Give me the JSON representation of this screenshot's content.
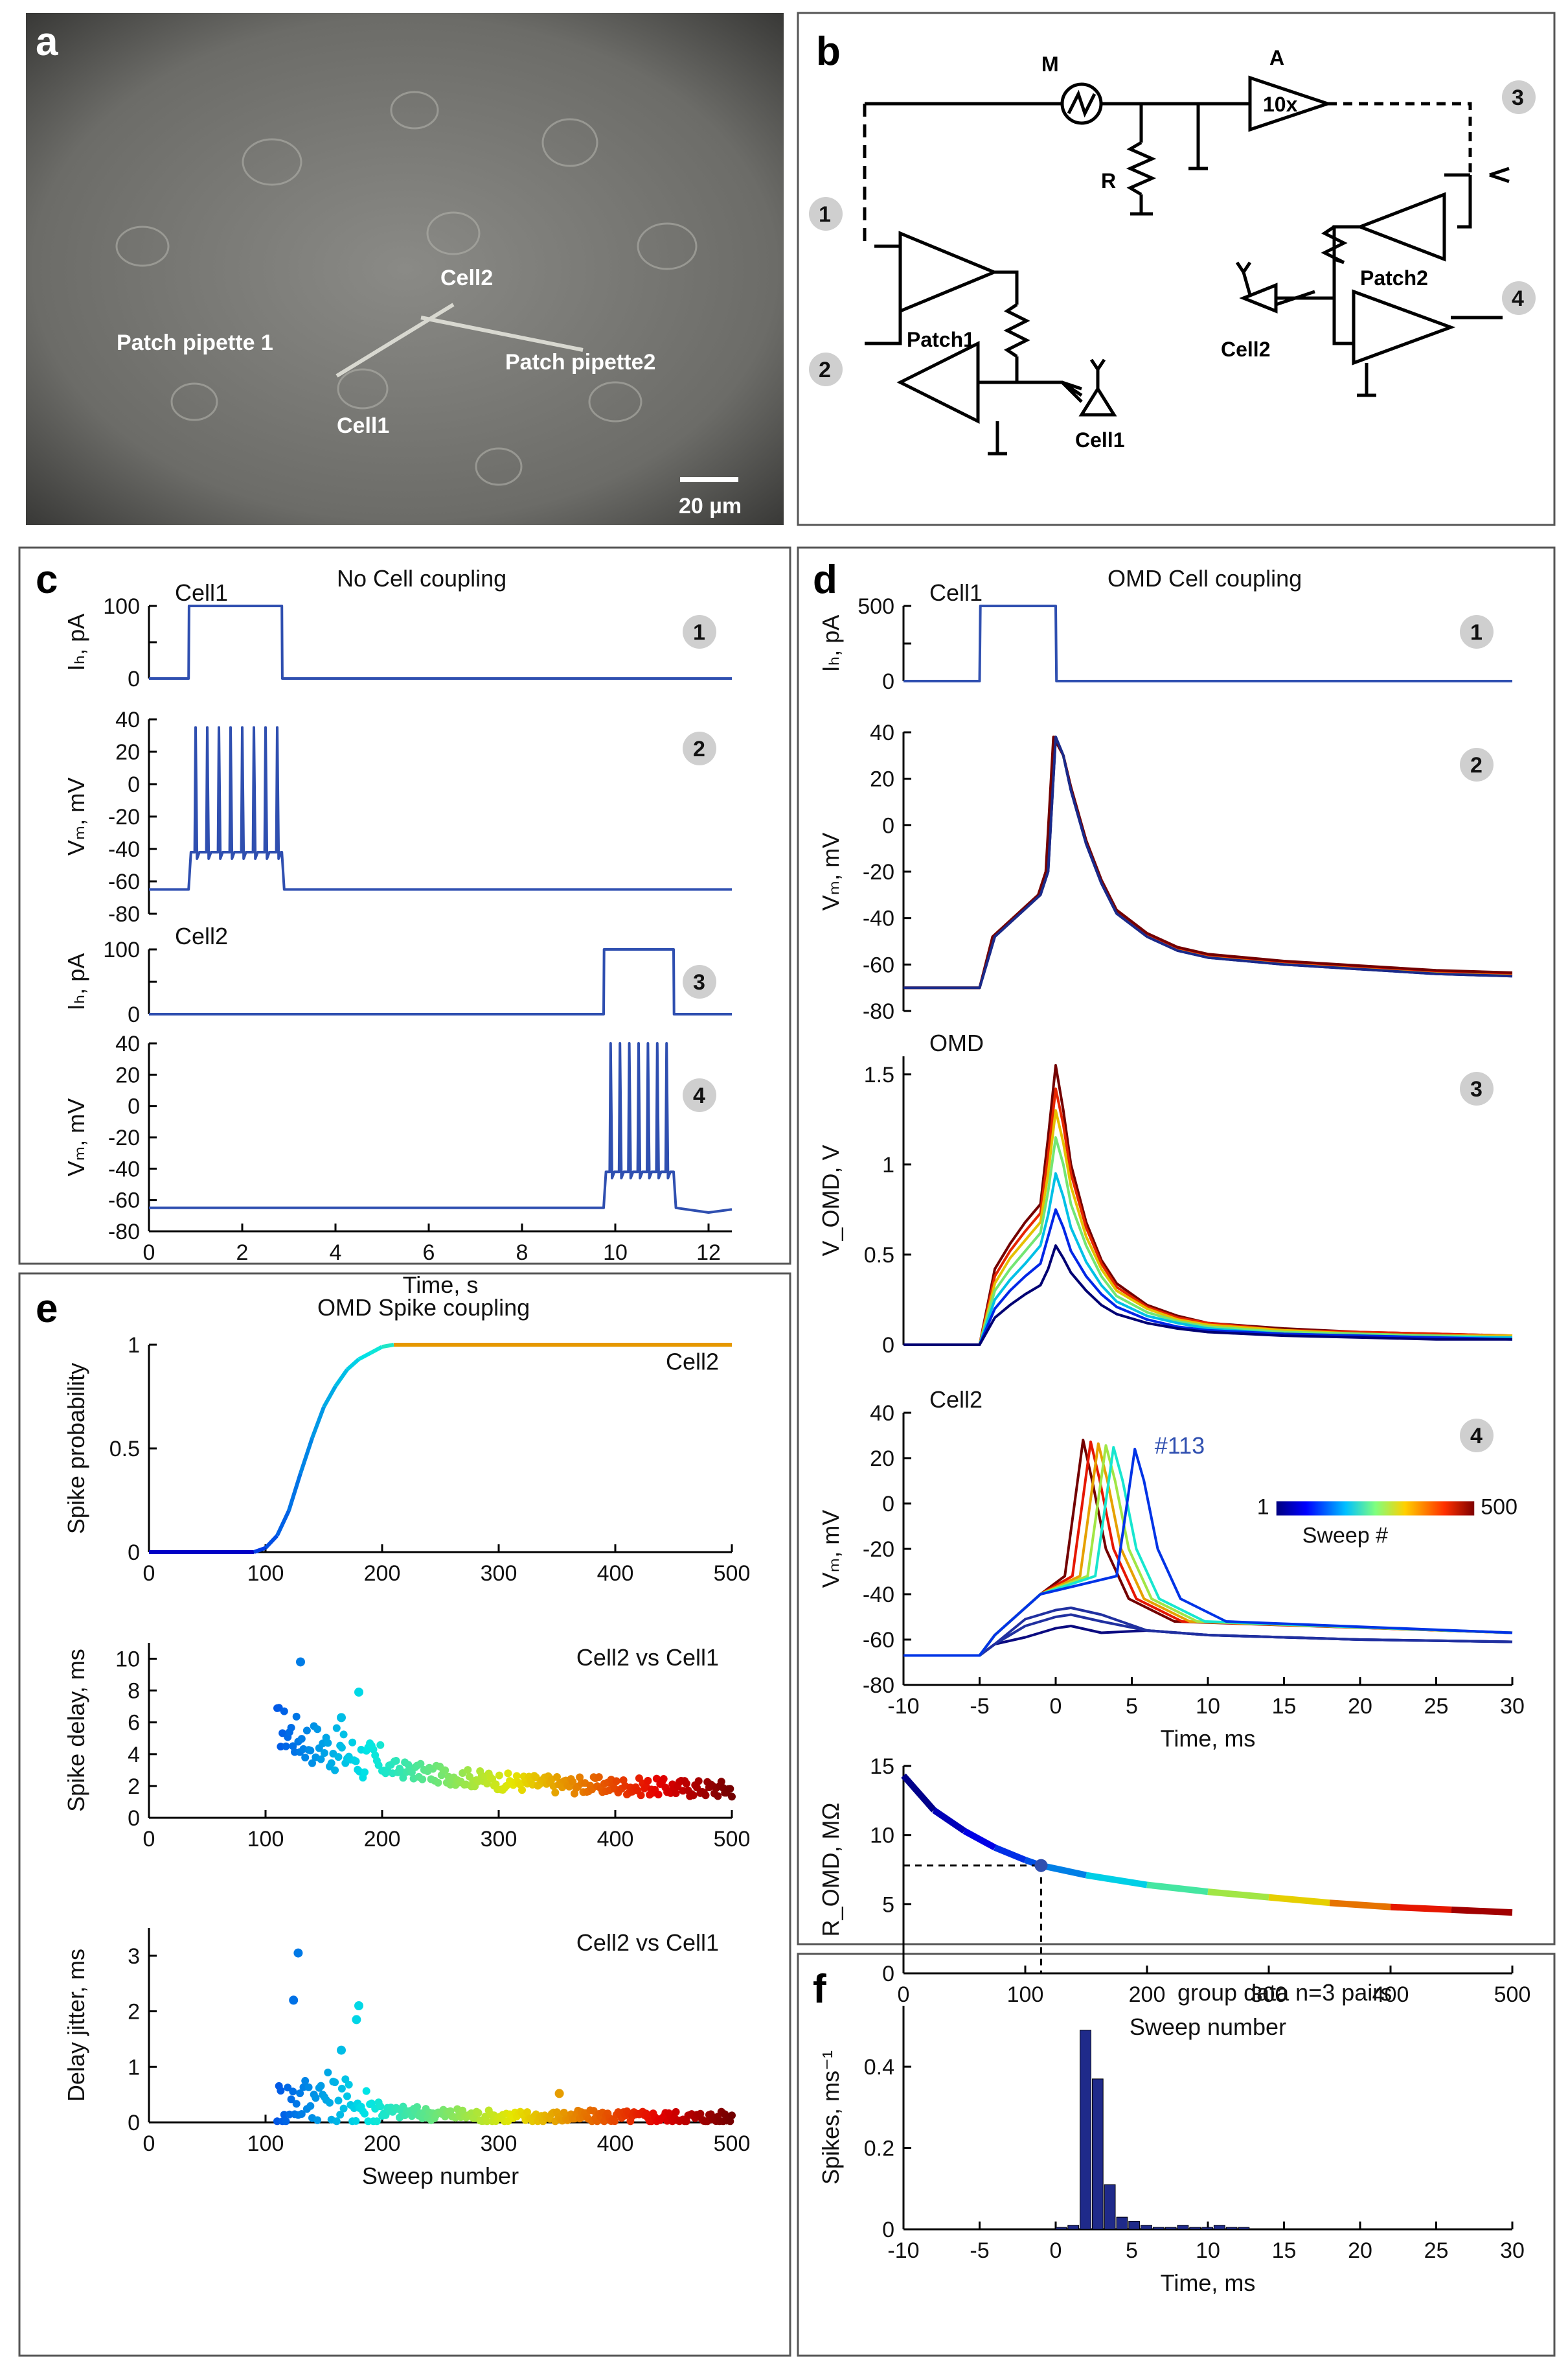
{
  "panels": {
    "a": {
      "label": "a",
      "annotations": [
        "Cell2",
        "Patch pipette 1",
        "Patch pipette2",
        "Cell1"
      ],
      "scale_bar": "20 µm"
    },
    "b": {
      "label": "b",
      "component_labels": [
        "M",
        "A",
        "10x",
        "R",
        "Patch1",
        "Patch2",
        "Cell1",
        "Cell2"
      ],
      "ports": [
        "1",
        "2",
        "3",
        "4"
      ]
    },
    "c": {
      "label": "c",
      "title": "No Cell coupling"
    },
    "d": {
      "label": "d",
      "title": "OMD Cell coupling"
    },
    "e": {
      "label": "e",
      "title": "OMD Spike coupling"
    },
    "f": {
      "label": "f"
    }
  },
  "chart_data": [
    {
      "id": "c1",
      "type": "line",
      "panel": "c",
      "title": "Cell1",
      "badge": "1",
      "ylabel": "Iₕ, pA",
      "xlim": [
        0,
        12.5
      ],
      "ylim": [
        0,
        100
      ],
      "yticks": [
        0,
        50,
        100
      ],
      "yticklabels": [
        "0",
        "",
        "100"
      ],
      "x": [
        0,
        0.85,
        0.86,
        2.85,
        2.86,
        12.5
      ],
      "y": [
        0,
        0,
        100,
        100,
        0,
        0
      ]
    },
    {
      "id": "c2",
      "type": "line",
      "panel": "c",
      "badge": "2",
      "ylabel": "Vₘ, mV",
      "xlim": [
        0,
        12.5
      ],
      "ylim": [
        -80,
        40
      ],
      "yticks": [
        -80,
        -60,
        -40,
        -20,
        0,
        20,
        40
      ],
      "x": [
        0,
        0.85,
        0.9,
        2.85,
        2.9,
        12.5
      ],
      "y": [
        -65,
        -65,
        -42,
        -42,
        -65,
        -65
      ],
      "spike_times": [
        1.0,
        1.25,
        1.5,
        1.75,
        2.0,
        2.25,
        2.5,
        2.75
      ],
      "spike_peak": 35
    },
    {
      "id": "c3",
      "type": "line",
      "panel": "c",
      "title": "Cell2",
      "badge": "3",
      "ylabel": "Iₕ, pA",
      "xlim": [
        0,
        12.5
      ],
      "ylim": [
        0,
        100
      ],
      "yticks": [
        0,
        50,
        100
      ],
      "yticklabels": [
        "0",
        "",
        "100"
      ],
      "x": [
        0,
        9.75,
        9.76,
        11.25,
        11.26,
        12.5
      ],
      "y": [
        0,
        0,
        100,
        100,
        0,
        0
      ]
    },
    {
      "id": "c4",
      "type": "line",
      "panel": "c",
      "badge": "4",
      "ylabel": "Vₘ, mV",
      "xlabel": "Time, s",
      "xlim": [
        0,
        12.5
      ],
      "ylim": [
        -80,
        40
      ],
      "yticks": [
        -80,
        -60,
        -40,
        -20,
        0,
        20,
        40
      ],
      "xticks": [
        0,
        2,
        4,
        6,
        8,
        10,
        12
      ],
      "x": [
        0,
        9.75,
        9.8,
        11.25,
        11.3,
        12.0,
        12.5
      ],
      "y": [
        -65,
        -65,
        -42,
        -42,
        -65,
        -68,
        -66
      ],
      "spike_times": [
        9.9,
        10.1,
        10.3,
        10.5,
        10.7,
        10.9,
        11.1
      ],
      "spike_peak": 40
    },
    {
      "id": "d1",
      "type": "line",
      "panel": "d",
      "title": "Cell1",
      "badge": "1",
      "ylabel": "Iₕ, pA",
      "xlim": [
        -10,
        30
      ],
      "ylim": [
        0,
        500
      ],
      "yticks": [
        0,
        250,
        500
      ],
      "yticklabels": [
        "0",
        "",
        "500"
      ],
      "x": [
        -10,
        -5,
        -4.95,
        0,
        0.05,
        30
      ],
      "y": [
        0,
        0,
        500,
        500,
        0,
        0
      ]
    },
    {
      "id": "d2",
      "type": "line",
      "panel": "d",
      "badge": "2",
      "ylabel": "Vₘ, mV",
      "xlim": [
        -10,
        30
      ],
      "ylim": [
        -80,
        40
      ],
      "yticks": [
        -80,
        -60,
        -40,
        -20,
        0,
        20,
        40
      ],
      "x": [
        -10,
        -5,
        -4,
        -3,
        -2,
        -1,
        -0.5,
        0,
        0.5,
        1,
        2,
        3,
        4,
        6,
        8,
        10,
        15,
        20,
        25,
        30
      ],
      "y": [
        -70,
        -70,
        -48,
        -42,
        -36,
        -30,
        -20,
        38,
        30,
        15,
        -8,
        -25,
        -38,
        -48,
        -54,
        -57,
        -60,
        -62,
        -64,
        -65
      ],
      "series_count": 8
    },
    {
      "id": "d3",
      "type": "line",
      "panel": "d",
      "title": "OMD",
      "badge": "3",
      "ylabel": "V_OMD, V",
      "xlim": [
        -10,
        30
      ],
      "ylim": [
        0,
        1.6
      ],
      "yticks": [
        0,
        0.5,
        1,
        1.5
      ],
      "x": [
        -10,
        -5,
        -4,
        -3,
        -2,
        -1,
        -0.5,
        0,
        0.5,
        1,
        2,
        3,
        4,
        6,
        8,
        10,
        15,
        20,
        25,
        30
      ],
      "series": [
        {
          "name": "s1",
          "values": [
            0,
            0,
            0.15,
            0.22,
            0.28,
            0.33,
            0.42,
            0.55,
            0.48,
            0.4,
            0.3,
            0.22,
            0.17,
            0.12,
            0.09,
            0.07,
            0.05,
            0.04,
            0.03,
            0.03
          ]
        },
        {
          "name": "s2",
          "values": [
            0,
            0,
            0.2,
            0.3,
            0.38,
            0.45,
            0.6,
            0.75,
            0.65,
            0.52,
            0.38,
            0.28,
            0.21,
            0.14,
            0.1,
            0.08,
            0.06,
            0.05,
            0.04,
            0.03
          ]
        },
        {
          "name": "s3",
          "values": [
            0,
            0,
            0.25,
            0.36,
            0.45,
            0.55,
            0.72,
            0.95,
            0.82,
            0.65,
            0.46,
            0.33,
            0.24,
            0.16,
            0.12,
            0.09,
            0.06,
            0.05,
            0.04,
            0.04
          ]
        },
        {
          "name": "s4",
          "values": [
            0,
            0,
            0.3,
            0.42,
            0.52,
            0.62,
            0.85,
            1.15,
            1.0,
            0.78,
            0.55,
            0.38,
            0.27,
            0.18,
            0.13,
            0.1,
            0.07,
            0.06,
            0.05,
            0.04
          ]
        },
        {
          "name": "s5",
          "values": [
            0,
            0,
            0.34,
            0.48,
            0.58,
            0.68,
            0.95,
            1.3,
            1.12,
            0.88,
            0.6,
            0.42,
            0.3,
            0.2,
            0.14,
            0.11,
            0.08,
            0.06,
            0.05,
            0.05
          ]
        },
        {
          "name": "s6",
          "values": [
            0,
            0,
            0.38,
            0.52,
            0.63,
            0.73,
            1.05,
            1.42,
            1.22,
            0.95,
            0.65,
            0.45,
            0.32,
            0.21,
            0.15,
            0.12,
            0.08,
            0.07,
            0.06,
            0.05
          ]
        },
        {
          "name": "s7",
          "values": [
            0,
            0,
            0.42,
            0.56,
            0.68,
            0.78,
            1.15,
            1.55,
            1.3,
            1.0,
            0.68,
            0.47,
            0.34,
            0.22,
            0.16,
            0.12,
            0.09,
            0.07,
            0.06,
            0.05
          ]
        }
      ]
    },
    {
      "id": "d4",
      "type": "line",
      "panel": "d",
      "title": "Cell2",
      "badge": "4",
      "ylabel": "Vₘ, mV",
      "xlabel": "Time, ms",
      "xlim": [
        -10,
        30
      ],
      "ylim": [
        -80,
        40
      ],
      "yticks": [
        -80,
        -60,
        -40,
        -20,
        0,
        20,
        40
      ],
      "xticks": [
        -10,
        -5,
        0,
        5,
        10,
        15,
        20,
        25,
        30
      ],
      "annotation": "#113",
      "colorbar": {
        "min_label": "1",
        "max_label": "500",
        "label": "Sweep #"
      },
      "spike_peaks_ms": [
        1.8,
        2.3,
        2.8,
        3.3,
        3.8,
        5.2
      ],
      "subthreshold_peaks_mV": [
        -55,
        -50,
        -47
      ]
    },
    {
      "id": "d5",
      "type": "line",
      "panel": "d",
      "ylabel": "R_OMD, MΩ",
      "xlabel": "Sweep number",
      "xlim": [
        0,
        500
      ],
      "ylim": [
        0,
        15
      ],
      "yticks": [
        0,
        5,
        10,
        15
      ],
      "xticks": [
        0,
        100,
        200,
        300,
        400,
        500
      ],
      "x": [
        0,
        25,
        50,
        75,
        100,
        113,
        150,
        200,
        250,
        300,
        350,
        400,
        450,
        500
      ],
      "y": [
        14.3,
        11.8,
        10.3,
        9.1,
        8.2,
        7.8,
        7.1,
        6.4,
        5.9,
        5.5,
        5.1,
        4.8,
        4.6,
        4.4
      ],
      "marker": {
        "x": 113,
        "y": 7.8
      }
    },
    {
      "id": "e1",
      "type": "line",
      "panel": "e",
      "ylabel": "Spike probability",
      "series_label": "Cell2",
      "xlim": [
        0,
        500
      ],
      "ylim": [
        0,
        1
      ],
      "yticks": [
        0,
        0.5,
        1
      ],
      "xticks": [
        0,
        100,
        200,
        300,
        400,
        500
      ],
      "x": [
        0,
        90,
        100,
        110,
        120,
        130,
        140,
        150,
        160,
        170,
        180,
        190,
        200,
        210,
        500
      ],
      "y": [
        0,
        0,
        0.02,
        0.08,
        0.2,
        0.38,
        0.55,
        0.7,
        0.8,
        0.88,
        0.93,
        0.96,
        0.99,
        1,
        1
      ]
    },
    {
      "id": "e2",
      "type": "scatter",
      "panel": "e",
      "ylabel": "Spike delay, ms",
      "series_label": "Cell2 vs Cell1",
      "xlim": [
        0,
        500
      ],
      "ylim": [
        0,
        11
      ],
      "yticks": [
        0,
        2,
        4,
        6,
        8,
        10
      ],
      "xticks": [
        0,
        100,
        200,
        300,
        400,
        500
      ],
      "trend_x": [
        110,
        130,
        150,
        180,
        200,
        250,
        300,
        350,
        400,
        450,
        500
      ],
      "trend_y": [
        5.8,
        5.0,
        4.5,
        3.8,
        3.2,
        2.7,
        2.3,
        2.1,
        2.0,
        1.9,
        1.8
      ],
      "outliers": [
        [
          130,
          9.8
        ],
        [
          180,
          7.9
        ],
        [
          165,
          6.3
        ]
      ]
    },
    {
      "id": "e3",
      "type": "scatter",
      "panel": "e",
      "ylabel": "Delay jitter, ms",
      "xlabel": "Sweep number",
      "series_label": "Cell2 vs Cell1",
      "xlim": [
        0,
        500
      ],
      "ylim": [
        0,
        3.5
      ],
      "yticks": [
        0,
        1,
        2,
        3
      ],
      "xticks": [
        0,
        100,
        200,
        300,
        400,
        500
      ],
      "trend_x": [
        110,
        150,
        200,
        300,
        400,
        500
      ],
      "trend_y": [
        0.35,
        0.5,
        0.2,
        0.1,
        0.1,
        0.08
      ],
      "outliers": [
        [
          128,
          3.05
        ],
        [
          124,
          2.2
        ],
        [
          180,
          2.1
        ],
        [
          178,
          1.85
        ],
        [
          165,
          1.3
        ],
        [
          352,
          0.52
        ]
      ]
    },
    {
      "id": "f1",
      "type": "bar",
      "panel": "f",
      "title": "group data n=3 pairs",
      "ylabel": "Spikes, ms⁻¹",
      "xlabel": "Time, ms",
      "xlim": [
        -10,
        30
      ],
      "ylim": [
        0,
        0.55
      ],
      "yticks": [
        0,
        0.2,
        0.4
      ],
      "xticks": [
        -10,
        -5,
        0,
        5,
        10,
        15,
        20,
        25,
        30
      ],
      "bin_width": 0.8,
      "x": [
        0,
        0.8,
        1.6,
        2.4,
        3.2,
        4.0,
        4.8,
        5.6,
        6.4,
        7.2,
        8.0,
        8.8,
        9.6,
        10.4,
        11.2,
        12.0
      ],
      "values": [
        0.005,
        0.01,
        0.49,
        0.37,
        0.11,
        0.03,
        0.02,
        0.01,
        0.005,
        0.005,
        0.01,
        0.005,
        0.005,
        0.01,
        0.005,
        0.005
      ]
    }
  ]
}
